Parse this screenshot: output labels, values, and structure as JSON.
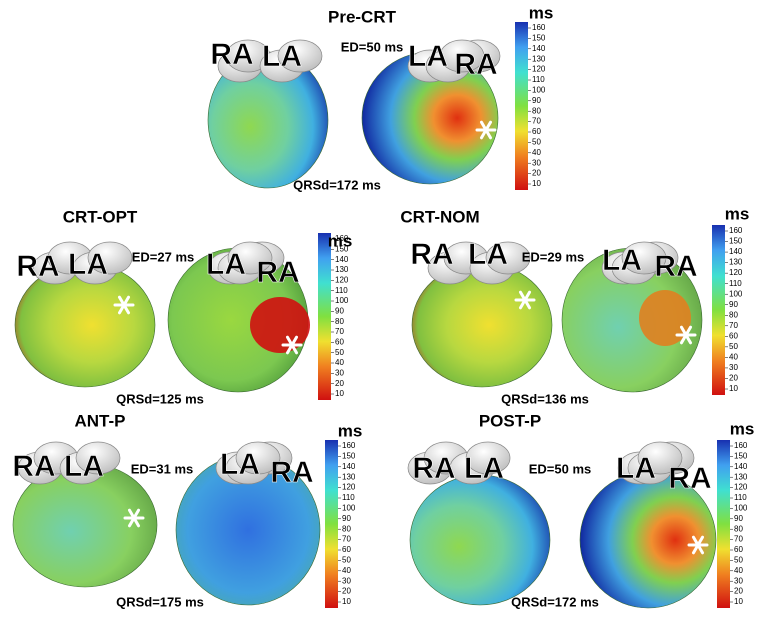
{
  "colorbar": {
    "unit": "ms",
    "ticks": [
      160,
      150,
      140,
      130,
      120,
      110,
      100,
      90,
      80,
      70,
      60,
      50,
      40,
      30,
      20,
      10
    ]
  },
  "panels": [
    {
      "title": "Pre-CRT",
      "ed": "ED=50 ms",
      "qrsd": "QRSd=172 ms",
      "labels": [
        "RA",
        "LA",
        "LA",
        "RA"
      ]
    },
    {
      "title": "CRT-OPT",
      "ed": "ED=27 ms",
      "qrsd": "QRSd=125 ms",
      "labels": [
        "RA",
        "LA",
        "LA",
        "RA"
      ]
    },
    {
      "title": "CRT-NOM",
      "ed": "ED=29 ms",
      "qrsd": "QRSd=136 ms",
      "labels": [
        "RA",
        "LA",
        "LA",
        "RA"
      ]
    },
    {
      "title": "ANT-P",
      "ed": "ED=31 ms",
      "qrsd": "QRSd=175 ms",
      "labels": [
        "RA",
        "LA",
        "LA",
        "RA"
      ]
    },
    {
      "title": "POST-P",
      "ed": "ED=50 ms",
      "qrsd": "QRSd=172 ms",
      "labels": [
        "RA",
        "LA",
        "LA",
        "RA"
      ]
    }
  ]
}
